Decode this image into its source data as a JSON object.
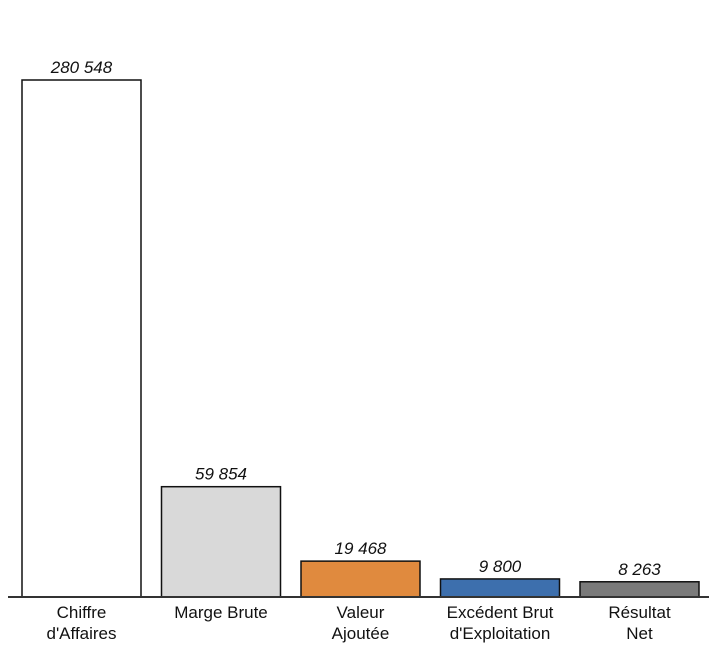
{
  "chart_data": {
    "type": "bar",
    "title": "",
    "xlabel": "",
    "ylabel": "",
    "categories": [
      [
        "Chiffre",
        "d'Affaires"
      ],
      [
        "Marge Brute"
      ],
      [
        "Valeur",
        "Ajoutée"
      ],
      [
        "Excédent Brut",
        "d'Exploitation"
      ],
      [
        "Résultat",
        "Net"
      ]
    ],
    "values": [
      280548,
      59854,
      19468,
      9800,
      8263
    ],
    "value_labels": [
      "280 548",
      "59 854",
      "19 468",
      "9 800",
      "8 263"
    ],
    "colors": [
      "#ffffff",
      "#d9d9d9",
      "#e08a3e",
      "#3d6fad",
      "#7a7a7a"
    ],
    "ylim": [
      0,
      280548
    ],
    "grid": false,
    "legend": "none"
  }
}
